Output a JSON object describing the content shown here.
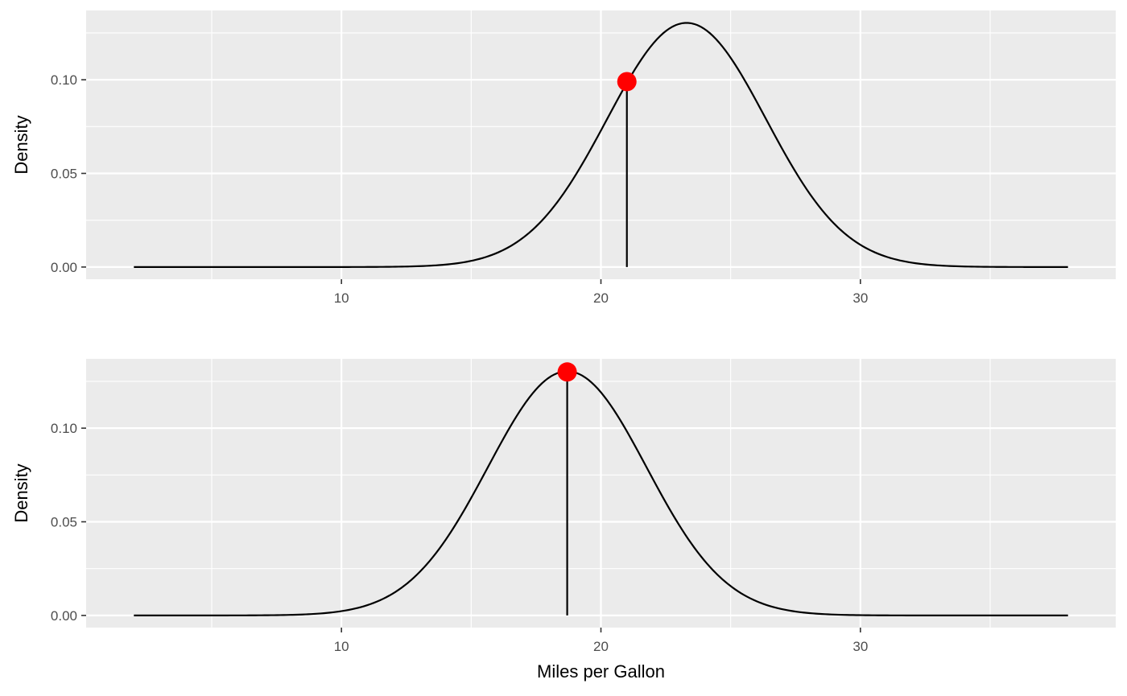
{
  "chart_data": [
    {
      "type": "line",
      "xlabel": "",
      "ylabel": "Density",
      "xlim": [
        0.16,
        39.84
      ],
      "ylim": [
        -0.0065,
        0.137
      ],
      "x_ticks": [
        10,
        20,
        30
      ],
      "y_ticks": [
        0.0,
        0.05,
        0.1
      ],
      "x_tick_labels": [
        "10",
        "20",
        "30"
      ],
      "y_tick_labels": [
        "0.00",
        "0.05",
        "0.10"
      ],
      "x_minor_breaks": [
        5,
        15,
        25,
        35
      ],
      "y_minor_breaks": [
        0.025,
        0.075,
        0.125
      ],
      "grid": true,
      "curve": {
        "distribution": "normal",
        "mean": 23.3,
        "sd": 3.06,
        "x_range": [
          2,
          38
        ]
      },
      "marker": {
        "x": 21.0,
        "y": 0.099,
        "color": "#ff0000"
      },
      "line_color": "#000000",
      "panel_background": "#ebebeb"
    },
    {
      "type": "line",
      "xlabel": "Miles per Gallon",
      "ylabel": "Density",
      "xlim": [
        0.16,
        39.84
      ],
      "ylim": [
        -0.0065,
        0.137
      ],
      "x_ticks": [
        10,
        20,
        30
      ],
      "y_ticks": [
        0.0,
        0.05,
        0.1
      ],
      "x_tick_labels": [
        "10",
        "20",
        "30"
      ],
      "y_tick_labels": [
        "0.00",
        "0.05",
        "0.10"
      ],
      "x_minor_breaks": [
        5,
        15,
        25,
        35
      ],
      "y_minor_breaks": [
        0.025,
        0.075,
        0.125
      ],
      "grid": true,
      "curve": {
        "distribution": "normal",
        "mean": 18.7,
        "sd": 3.06,
        "x_range": [
          2,
          38
        ]
      },
      "marker": {
        "x": 18.7,
        "y": 0.13,
        "color": "#ff0000"
      },
      "line_color": "#000000",
      "panel_background": "#ebebeb"
    }
  ]
}
